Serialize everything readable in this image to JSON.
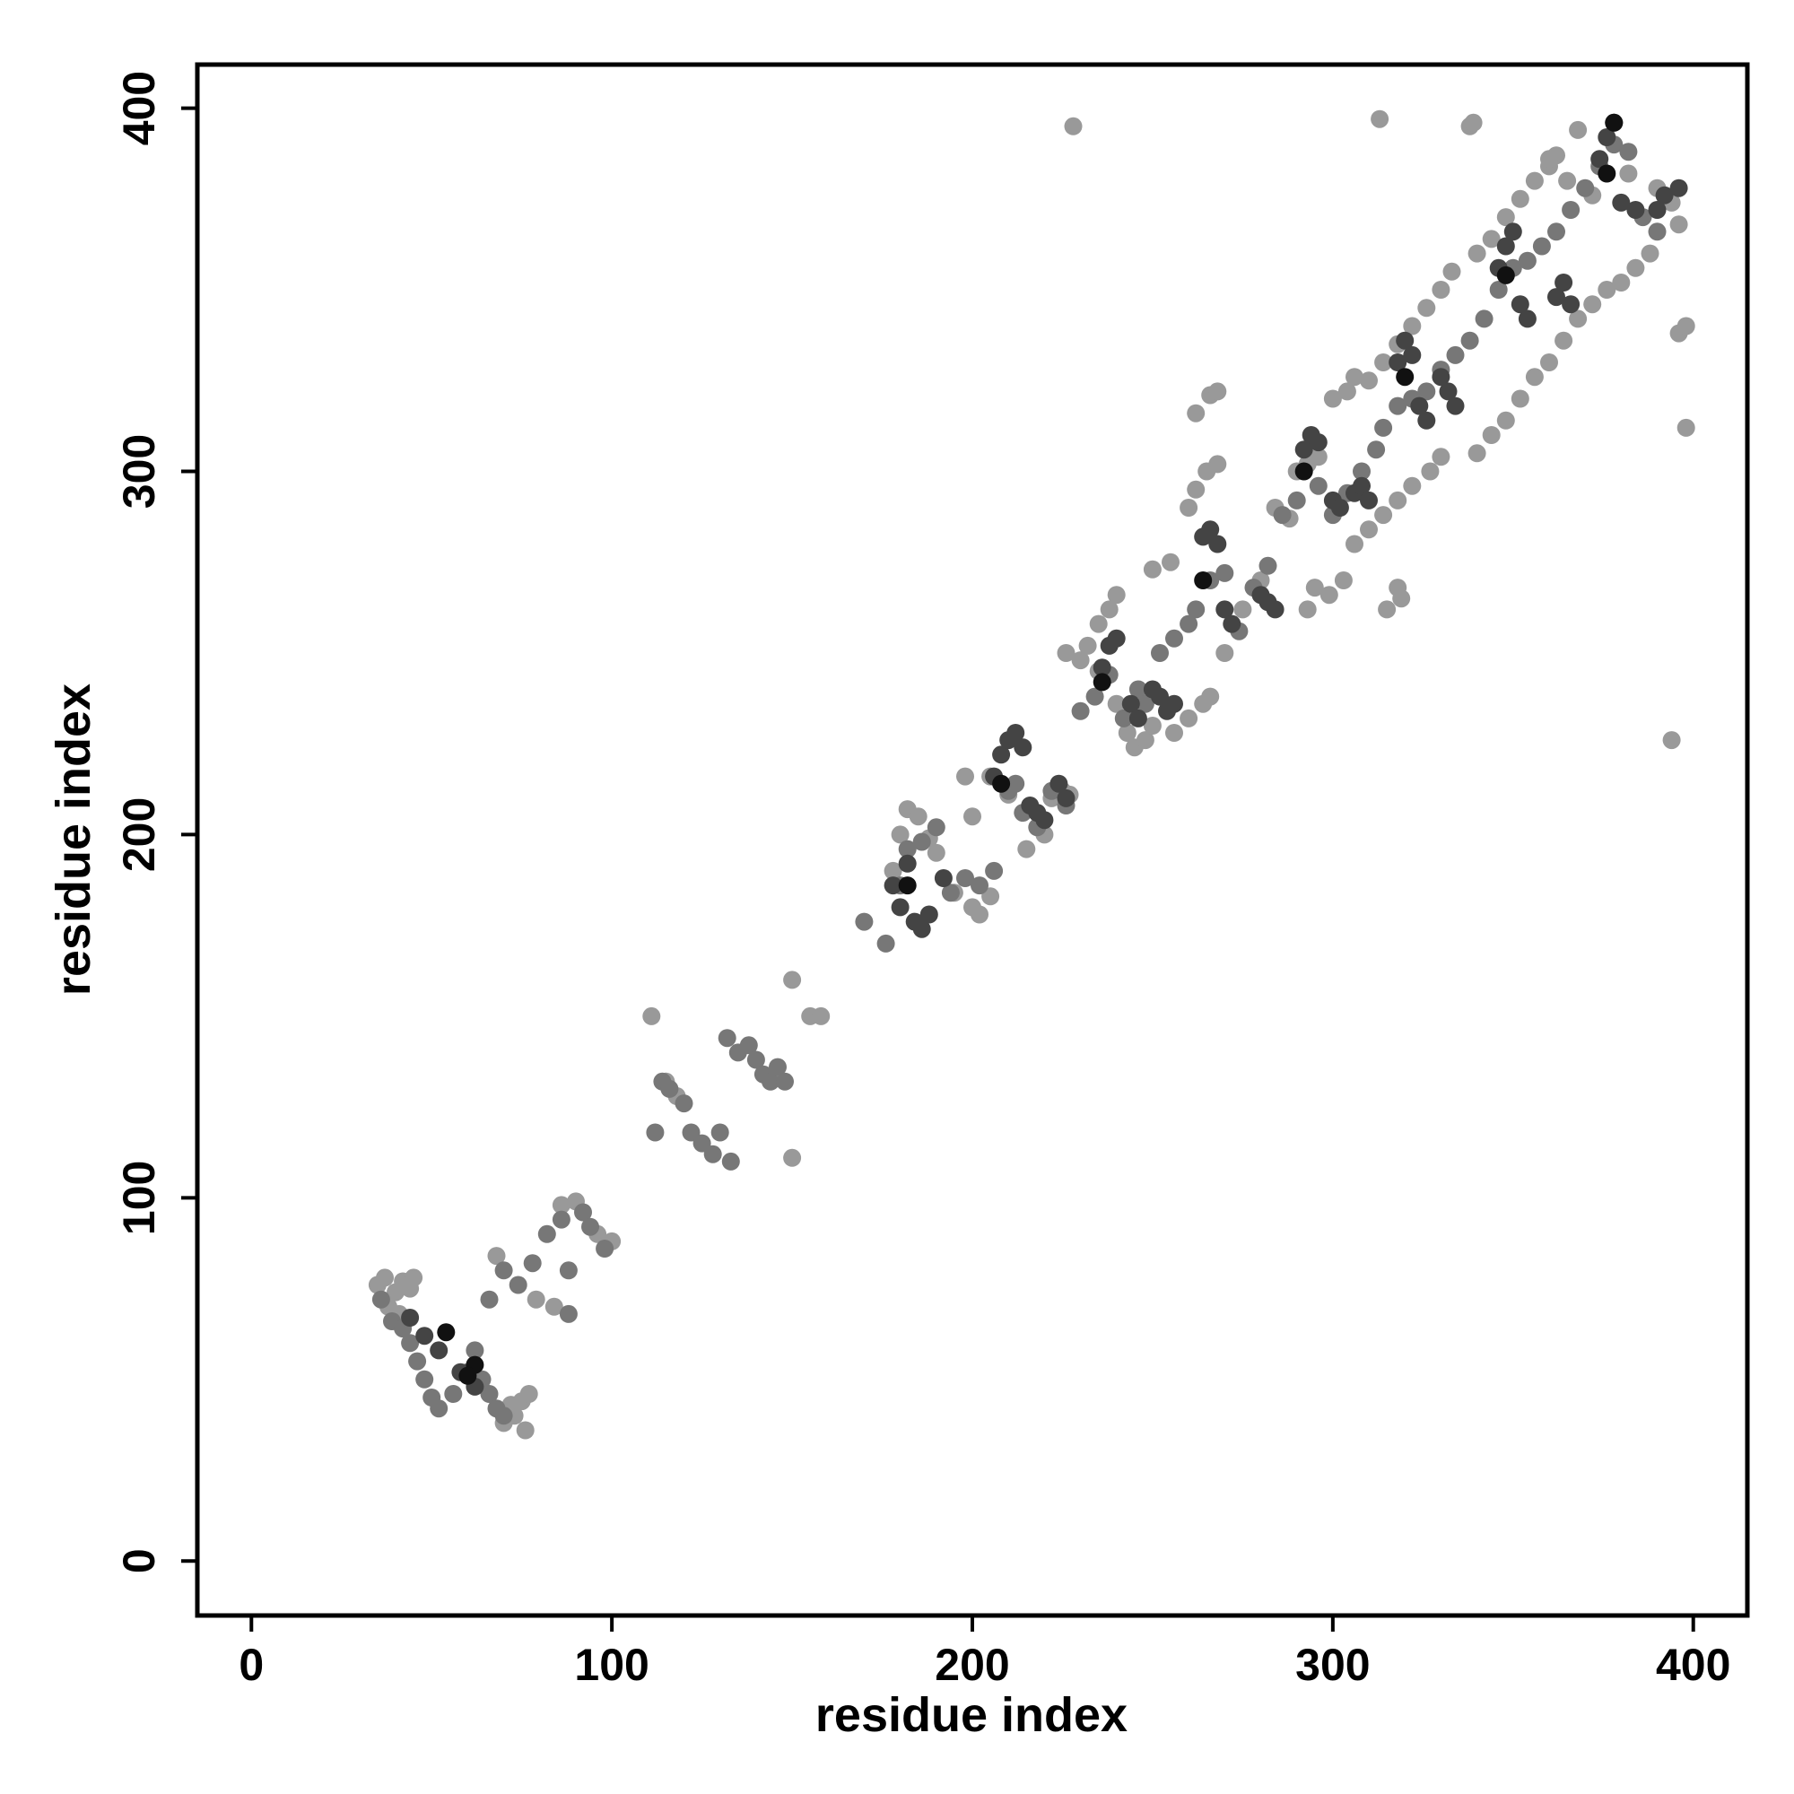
{
  "chart_data": {
    "type": "scatter",
    "title": "",
    "xlabel": "residue index",
    "ylabel": "residue index",
    "xlim": [
      -15,
      415
    ],
    "ylim": [
      -15,
      412
    ],
    "xticks": [
      0,
      100,
      200,
      300,
      400
    ],
    "yticks": [
      0,
      100,
      200,
      300,
      400
    ],
    "grid": false,
    "legend": "none",
    "colors": {
      "light": "#999999",
      "mid": "#777777",
      "dark": "#444444",
      "black": "#111111"
    },
    "series": [
      {
        "color": "#999999",
        "points": [
          [
            35,
            76
          ],
          [
            37,
            78
          ],
          [
            40,
            74
          ],
          [
            42,
            77
          ],
          [
            44,
            75
          ],
          [
            45,
            78
          ],
          [
            38,
            70
          ],
          [
            41,
            68
          ],
          [
            73,
            40
          ],
          [
            75,
            44
          ],
          [
            77,
            46
          ],
          [
            76,
            36
          ],
          [
            70,
            38
          ],
          [
            72,
            43
          ],
          [
            68,
            84
          ],
          [
            79,
            72
          ],
          [
            84,
            70
          ],
          [
            86,
            98
          ],
          [
            90,
            99
          ],
          [
            96,
            90
          ],
          [
            100,
            88
          ],
          [
            115,
            132
          ],
          [
            118,
            128
          ],
          [
            111,
            150
          ],
          [
            150,
            160
          ],
          [
            150,
            111
          ],
          [
            155,
            150
          ],
          [
            158,
            150
          ],
          [
            178,
            190
          ],
          [
            180,
            200
          ],
          [
            182,
            207
          ],
          [
            185,
            205
          ],
          [
            188,
            199
          ],
          [
            190,
            195
          ],
          [
            195,
            184
          ],
          [
            200,
            180
          ],
          [
            202,
            178
          ],
          [
            205,
            183
          ],
          [
            200,
            205
          ],
          [
            205,
            216
          ],
          [
            198,
            216
          ],
          [
            210,
            211
          ],
          [
            215,
            196
          ],
          [
            220,
            200
          ],
          [
            222,
            210
          ],
          [
            225,
            212
          ],
          [
            227,
            211
          ],
          [
            228,
            395
          ],
          [
            226,
            250
          ],
          [
            230,
            248
          ],
          [
            232,
            252
          ],
          [
            235,
            258
          ],
          [
            238,
            262
          ],
          [
            240,
            266
          ],
          [
            235,
            245
          ],
          [
            240,
            236
          ],
          [
            243,
            228
          ],
          [
            245,
            224
          ],
          [
            248,
            226
          ],
          [
            250,
            230
          ],
          [
            256,
            228
          ],
          [
            260,
            232
          ],
          [
            264,
            236
          ],
          [
            266,
            238
          ],
          [
            250,
            273
          ],
          [
            255,
            275
          ],
          [
            260,
            290
          ],
          [
            262,
            295
          ],
          [
            265,
            300
          ],
          [
            268,
            302
          ],
          [
            266,
            321
          ],
          [
            262,
            316
          ],
          [
            268,
            322
          ],
          [
            270,
            250
          ],
          [
            275,
            262
          ],
          [
            280,
            270
          ],
          [
            284,
            290
          ],
          [
            288,
            287
          ],
          [
            290,
            300
          ],
          [
            293,
            302
          ],
          [
            296,
            304
          ],
          [
            300,
            320
          ],
          [
            304,
            322
          ],
          [
            306,
            326
          ],
          [
            293,
            262
          ],
          [
            295,
            268
          ],
          [
            299,
            266
          ],
          [
            303,
            270
          ],
          [
            306,
            280
          ],
          [
            310,
            284
          ],
          [
            314,
            288
          ],
          [
            318,
            292
          ],
          [
            322,
            296
          ],
          [
            327,
            300
          ],
          [
            330,
            304
          ],
          [
            315,
            262
          ],
          [
            319,
            265
          ],
          [
            318,
            268
          ],
          [
            310,
            325
          ],
          [
            314,
            330
          ],
          [
            318,
            335
          ],
          [
            322,
            340
          ],
          [
            326,
            345
          ],
          [
            330,
            350
          ],
          [
            333,
            355
          ],
          [
            313,
            397
          ],
          [
            338,
            395
          ],
          [
            339,
            396
          ],
          [
            340,
            360
          ],
          [
            344,
            364
          ],
          [
            348,
            370
          ],
          [
            352,
            375
          ],
          [
            356,
            380
          ],
          [
            360,
            384
          ],
          [
            362,
            387
          ],
          [
            340,
            305
          ],
          [
            344,
            310
          ],
          [
            348,
            314
          ],
          [
            352,
            320
          ],
          [
            356,
            326
          ],
          [
            360,
            330
          ],
          [
            364,
            336
          ],
          [
            368,
            342
          ],
          [
            372,
            346
          ],
          [
            376,
            350
          ],
          [
            380,
            352
          ],
          [
            384,
            356
          ],
          [
            388,
            360
          ],
          [
            368,
            394
          ],
          [
            360,
            386
          ],
          [
            365,
            380
          ],
          [
            372,
            376
          ],
          [
            382,
            382
          ],
          [
            390,
            378
          ],
          [
            394,
            374
          ],
          [
            396,
            338
          ],
          [
            398,
            312
          ],
          [
            394,
            226
          ],
          [
            396,
            368
          ],
          [
            398,
            340
          ]
        ]
      },
      {
        "color": "#777777",
        "points": [
          [
            36,
            72
          ],
          [
            39,
            66
          ],
          [
            42,
            64
          ],
          [
            44,
            60
          ],
          [
            46,
            55
          ],
          [
            48,
            50
          ],
          [
            50,
            45
          ],
          [
            52,
            42
          ],
          [
            56,
            46
          ],
          [
            60,
            52
          ],
          [
            64,
            50
          ],
          [
            66,
            46
          ],
          [
            68,
            42
          ],
          [
            70,
            40
          ],
          [
            62,
            58
          ],
          [
            66,
            72
          ],
          [
            70,
            80
          ],
          [
            74,
            76
          ],
          [
            78,
            82
          ],
          [
            82,
            90
          ],
          [
            86,
            94
          ],
          [
            88,
            80
          ],
          [
            88,
            68
          ],
          [
            92,
            96
          ],
          [
            94,
            92
          ],
          [
            98,
            86
          ],
          [
            112,
            118
          ],
          [
            114,
            132
          ],
          [
            116,
            130
          ],
          [
            120,
            126
          ],
          [
            122,
            118
          ],
          [
            125,
            115
          ],
          [
            128,
            112
          ],
          [
            130,
            118
          ],
          [
            133,
            110
          ],
          [
            132,
            144
          ],
          [
            135,
            140
          ],
          [
            138,
            142
          ],
          [
            140,
            138
          ],
          [
            142,
            134
          ],
          [
            144,
            132
          ],
          [
            146,
            136
          ],
          [
            148,
            132
          ],
          [
            170,
            176
          ],
          [
            176,
            170
          ],
          [
            180,
            186
          ],
          [
            182,
            196
          ],
          [
            186,
            198
          ],
          [
            190,
            202
          ],
          [
            194,
            184
          ],
          [
            198,
            188
          ],
          [
            202,
            186
          ],
          [
            206,
            190
          ],
          [
            210,
            212
          ],
          [
            212,
            214
          ],
          [
            214,
            206
          ],
          [
            218,
            202
          ],
          [
            222,
            212
          ],
          [
            226,
            208
          ],
          [
            230,
            234
          ],
          [
            234,
            238
          ],
          [
            238,
            244
          ],
          [
            242,
            232
          ],
          [
            246,
            240
          ],
          [
            248,
            236
          ],
          [
            252,
            250
          ],
          [
            256,
            254
          ],
          [
            260,
            258
          ],
          [
            262,
            262
          ],
          [
            266,
            270
          ],
          [
            270,
            272
          ],
          [
            274,
            256
          ],
          [
            278,
            268
          ],
          [
            282,
            274
          ],
          [
            286,
            288
          ],
          [
            290,
            292
          ],
          [
            296,
            296
          ],
          [
            300,
            288
          ],
          [
            304,
            294
          ],
          [
            308,
            300
          ],
          [
            312,
            306
          ],
          [
            314,
            312
          ],
          [
            318,
            318
          ],
          [
            322,
            320
          ],
          [
            326,
            322
          ],
          [
            330,
            328
          ],
          [
            334,
            332
          ],
          [
            338,
            336
          ],
          [
            342,
            342
          ],
          [
            346,
            350
          ],
          [
            350,
            356
          ],
          [
            354,
            358
          ],
          [
            358,
            362
          ],
          [
            362,
            366
          ],
          [
            366,
            372
          ],
          [
            370,
            378
          ],
          [
            374,
            384
          ],
          [
            378,
            390
          ],
          [
            382,
            388
          ],
          [
            386,
            370
          ],
          [
            390,
            366
          ]
        ]
      },
      {
        "color": "#444444",
        "points": [
          [
            44,
            67
          ],
          [
            48,
            62
          ],
          [
            52,
            58
          ],
          [
            58,
            52
          ],
          [
            62,
            48
          ],
          [
            180,
            180
          ],
          [
            184,
            176
          ],
          [
            186,
            174
          ],
          [
            188,
            178
          ],
          [
            192,
            188
          ],
          [
            178,
            186
          ],
          [
            182,
            192
          ],
          [
            206,
            216
          ],
          [
            208,
            222
          ],
          [
            210,
            226
          ],
          [
            212,
            228
          ],
          [
            214,
            224
          ],
          [
            216,
            208
          ],
          [
            218,
            206
          ],
          [
            220,
            204
          ],
          [
            224,
            214
          ],
          [
            226,
            210
          ],
          [
            236,
            246
          ],
          [
            238,
            252
          ],
          [
            240,
            254
          ],
          [
            244,
            236
          ],
          [
            246,
            232
          ],
          [
            250,
            240
          ],
          [
            252,
            238
          ],
          [
            254,
            234
          ],
          [
            256,
            236
          ],
          [
            264,
            282
          ],
          [
            266,
            284
          ],
          [
            268,
            280
          ],
          [
            270,
            262
          ],
          [
            272,
            258
          ],
          [
            280,
            266
          ],
          [
            282,
            264
          ],
          [
            284,
            262
          ],
          [
            292,
            306
          ],
          [
            294,
            310
          ],
          [
            296,
            308
          ],
          [
            300,
            292
          ],
          [
            302,
            290
          ],
          [
            306,
            294
          ],
          [
            308,
            296
          ],
          [
            310,
            292
          ],
          [
            318,
            330
          ],
          [
            320,
            336
          ],
          [
            322,
            332
          ],
          [
            324,
            318
          ],
          [
            326,
            314
          ],
          [
            330,
            326
          ],
          [
            332,
            322
          ],
          [
            334,
            318
          ],
          [
            346,
            356
          ],
          [
            348,
            362
          ],
          [
            350,
            366
          ],
          [
            352,
            346
          ],
          [
            354,
            342
          ],
          [
            362,
            348
          ],
          [
            364,
            352
          ],
          [
            366,
            346
          ],
          [
            374,
            386
          ],
          [
            376,
            392
          ],
          [
            378,
            396
          ],
          [
            380,
            374
          ],
          [
            384,
            372
          ],
          [
            390,
            372
          ],
          [
            392,
            376
          ],
          [
            396,
            378
          ]
        ]
      },
      {
        "color": "#111111",
        "points": [
          [
            54,
            63
          ],
          [
            62,
            54
          ],
          [
            60,
            51
          ],
          [
            182,
            186
          ],
          [
            208,
            214
          ],
          [
            236,
            242
          ],
          [
            264,
            270
          ],
          [
            292,
            300
          ],
          [
            320,
            326
          ],
          [
            348,
            354
          ],
          [
            376,
            382
          ],
          [
            378,
            396
          ]
        ]
      }
    ]
  }
}
